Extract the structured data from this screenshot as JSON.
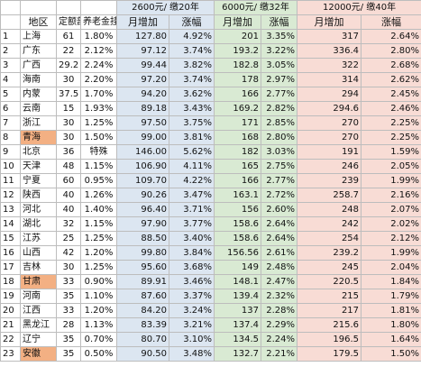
{
  "groups": [
    "2600元/ 缴20年",
    "6000元/ 缴32年",
    "12000元/ 缴40年"
  ],
  "headers": {
    "region": "地区",
    "fixed": "定额部分",
    "pension": "养老金挂钩",
    "inc1": "月增加",
    "pct1": "涨幅",
    "inc2": "月增加",
    "pct2": "涨幅",
    "inc3": "月增加",
    "pct3": "涨幅"
  },
  "rows": [
    {
      "idx": "1",
      "region": "上海",
      "fixed": "61",
      "pension": "1.80%",
      "inc1": "127.80",
      "pct1": "4.92%",
      "inc2": "201",
      "pct2": "3.35%",
      "inc3": "317",
      "pct3": "2.64%",
      "hl": false
    },
    {
      "idx": "2",
      "region": "广东",
      "fixed": "22",
      "pension": "2.12%",
      "inc1": "97.12",
      "pct1": "3.74%",
      "inc2": "193.2",
      "pct2": "3.22%",
      "inc3": "336.4",
      "pct3": "2.80%",
      "hl": false
    },
    {
      "idx": "3",
      "region": "广西",
      "fixed": "29.2",
      "pension": "2.24%",
      "inc1": "99.44",
      "pct1": "3.82%",
      "inc2": "182.8",
      "pct2": "3.05%",
      "inc3": "322",
      "pct3": "2.68%",
      "hl": false
    },
    {
      "idx": "4",
      "region": "海南",
      "fixed": "30",
      "pension": "2.20%",
      "inc1": "97.20",
      "pct1": "3.74%",
      "inc2": "178",
      "pct2": "2.97%",
      "inc3": "314",
      "pct3": "2.62%",
      "hl": false
    },
    {
      "idx": "5",
      "region": "内蒙",
      "fixed": "37.5",
      "pension": "1.70%",
      "inc1": "94.20",
      "pct1": "3.62%",
      "inc2": "166",
      "pct2": "2.77%",
      "inc3": "294",
      "pct3": "2.45%",
      "hl": false
    },
    {
      "idx": "6",
      "region": "云南",
      "fixed": "15",
      "pension": "1.93%",
      "inc1": "89.18",
      "pct1": "3.43%",
      "inc2": "169.2",
      "pct2": "2.82%",
      "inc3": "294.6",
      "pct3": "2.46%",
      "hl": false
    },
    {
      "idx": "7",
      "region": "浙江",
      "fixed": "30",
      "pension": "1.25%",
      "inc1": "97.50",
      "pct1": "3.75%",
      "inc2": "171",
      "pct2": "2.85%",
      "inc3": "270",
      "pct3": "2.25%",
      "hl": false
    },
    {
      "idx": "8",
      "region": "青海",
      "fixed": "30",
      "pension": "1.50%",
      "inc1": "99.00",
      "pct1": "3.81%",
      "inc2": "168",
      "pct2": "2.80%",
      "inc3": "270",
      "pct3": "2.25%",
      "hl": true
    },
    {
      "idx": "9",
      "region": "北京",
      "fixed": "36",
      "pension": "特殊",
      "inc1": "146.00",
      "pct1": "5.62%",
      "inc2": "182",
      "pct2": "3.03%",
      "inc3": "191",
      "pct3": "1.59%",
      "hl": false
    },
    {
      "idx": "10",
      "region": "天津",
      "fixed": "48",
      "pension": "1.15%",
      "inc1": "106.90",
      "pct1": "4.11%",
      "inc2": "165",
      "pct2": "2.75%",
      "inc3": "246",
      "pct3": "2.05%",
      "hl": false
    },
    {
      "idx": "11",
      "region": "宁夏",
      "fixed": "60",
      "pension": "0.95%",
      "inc1": "109.70",
      "pct1": "4.22%",
      "inc2": "166",
      "pct2": "2.77%",
      "inc3": "239",
      "pct3": "1.99%",
      "hl": false
    },
    {
      "idx": "12",
      "region": "陕西",
      "fixed": "40",
      "pension": "1.26%",
      "inc1": "90.26",
      "pct1": "3.47%",
      "inc2": "163.1",
      "pct2": "2.72%",
      "inc3": "258.7",
      "pct3": "2.16%",
      "hl": false
    },
    {
      "idx": "13",
      "region": "河北",
      "fixed": "40",
      "pension": "1.40%",
      "inc1": "96.40",
      "pct1": "3.71%",
      "inc2": "156",
      "pct2": "2.60%",
      "inc3": "248",
      "pct3": "2.07%",
      "hl": false
    },
    {
      "idx": "14",
      "region": "湖北",
      "fixed": "32",
      "pension": "1.15%",
      "inc1": "97.90",
      "pct1": "3.77%",
      "inc2": "158.6",
      "pct2": "2.64%",
      "inc3": "242",
      "pct3": "2.02%",
      "hl": false
    },
    {
      "idx": "15",
      "region": "江苏",
      "fixed": "25",
      "pension": "1.25%",
      "inc1": "88.50",
      "pct1": "3.40%",
      "inc2": "158.6",
      "pct2": "2.64%",
      "inc3": "254",
      "pct3": "2.12%",
      "hl": false
    },
    {
      "idx": "16",
      "region": "山西",
      "fixed": "42",
      "pension": "1.20%",
      "inc1": "99.80",
      "pct1": "3.84%",
      "inc2": "156.56",
      "pct2": "2.61%",
      "inc3": "239.2",
      "pct3": "1.99%",
      "hl": false
    },
    {
      "idx": "17",
      "region": "吉林",
      "fixed": "30",
      "pension": "1.25%",
      "inc1": "95.60",
      "pct1": "3.68%",
      "inc2": "149",
      "pct2": "2.48%",
      "inc3": "245",
      "pct3": "2.04%",
      "hl": false
    },
    {
      "idx": "18",
      "region": "甘肃",
      "fixed": "33",
      "pension": "0.90%",
      "inc1": "89.91",
      "pct1": "3.46%",
      "inc2": "148.1",
      "pct2": "2.47%",
      "inc3": "220.5",
      "pct3": "1.84%",
      "hl": true
    },
    {
      "idx": "19",
      "region": "河南",
      "fixed": "35",
      "pension": "1.10%",
      "inc1": "87.60",
      "pct1": "3.37%",
      "inc2": "139.4",
      "pct2": "2.32%",
      "inc3": "215",
      "pct3": "1.79%",
      "hl": false
    },
    {
      "idx": "20",
      "region": "江西",
      "fixed": "33",
      "pension": "1.20%",
      "inc1": "84.20",
      "pct1": "3.24%",
      "inc2": "137",
      "pct2": "2.28%",
      "inc3": "217",
      "pct3": "1.81%",
      "hl": false
    },
    {
      "idx": "21",
      "region": "黑龙江",
      "fixed": "28",
      "pension": "1.13%",
      "inc1": "83.39",
      "pct1": "3.21%",
      "inc2": "137.4",
      "pct2": "2.29%",
      "inc3": "215.6",
      "pct3": "1.80%",
      "hl": false
    },
    {
      "idx": "22",
      "region": "辽宁",
      "fixed": "35",
      "pension": "0.70%",
      "inc1": "80.70",
      "pct1": "3.10%",
      "inc2": "134.5",
      "pct2": "2.24%",
      "inc3": "196.5",
      "pct3": "1.64%",
      "hl": false
    },
    {
      "idx": "23",
      "region": "安徽",
      "fixed": "35",
      "pension": "0.50%",
      "inc1": "90.50",
      "pct1": "3.48%",
      "inc2": "132.7",
      "pct2": "2.21%",
      "inc3": "179.5",
      "pct3": "1.50%",
      "hl": true
    }
  ]
}
